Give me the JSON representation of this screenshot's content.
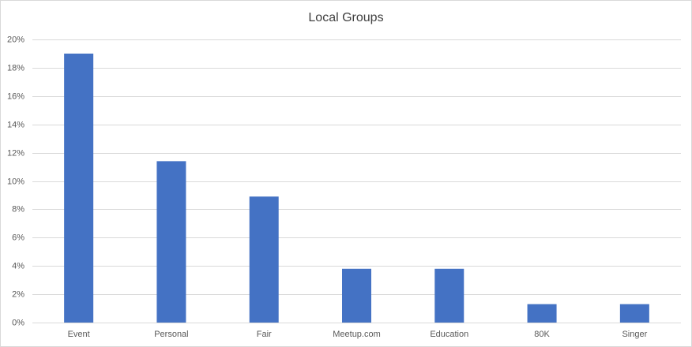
{
  "chart_data": {
    "type": "bar",
    "title": "Local Groups",
    "categories": [
      "Event",
      "Personal",
      "Fair",
      "Meetup.com",
      "Education",
      "80K",
      "Singer"
    ],
    "values": [
      19,
      11.4,
      8.9,
      3.8,
      3.8,
      1.3,
      1.3
    ],
    "color": "#4472c4",
    "ylim": [
      0,
      20
    ],
    "yticks": [
      {
        "value": 0,
        "label": "0%"
      },
      {
        "value": 2,
        "label": "2%"
      },
      {
        "value": 4,
        "label": "4%"
      },
      {
        "value": 6,
        "label": "6%"
      },
      {
        "value": 8,
        "label": "8%"
      },
      {
        "value": 10,
        "label": "10%"
      },
      {
        "value": 12,
        "label": "12%"
      },
      {
        "value": 14,
        "label": "14%"
      },
      {
        "value": 16,
        "label": "16%"
      },
      {
        "value": 18,
        "label": "18%"
      },
      {
        "value": 20,
        "label": "20%"
      }
    ],
    "grid": true
  }
}
